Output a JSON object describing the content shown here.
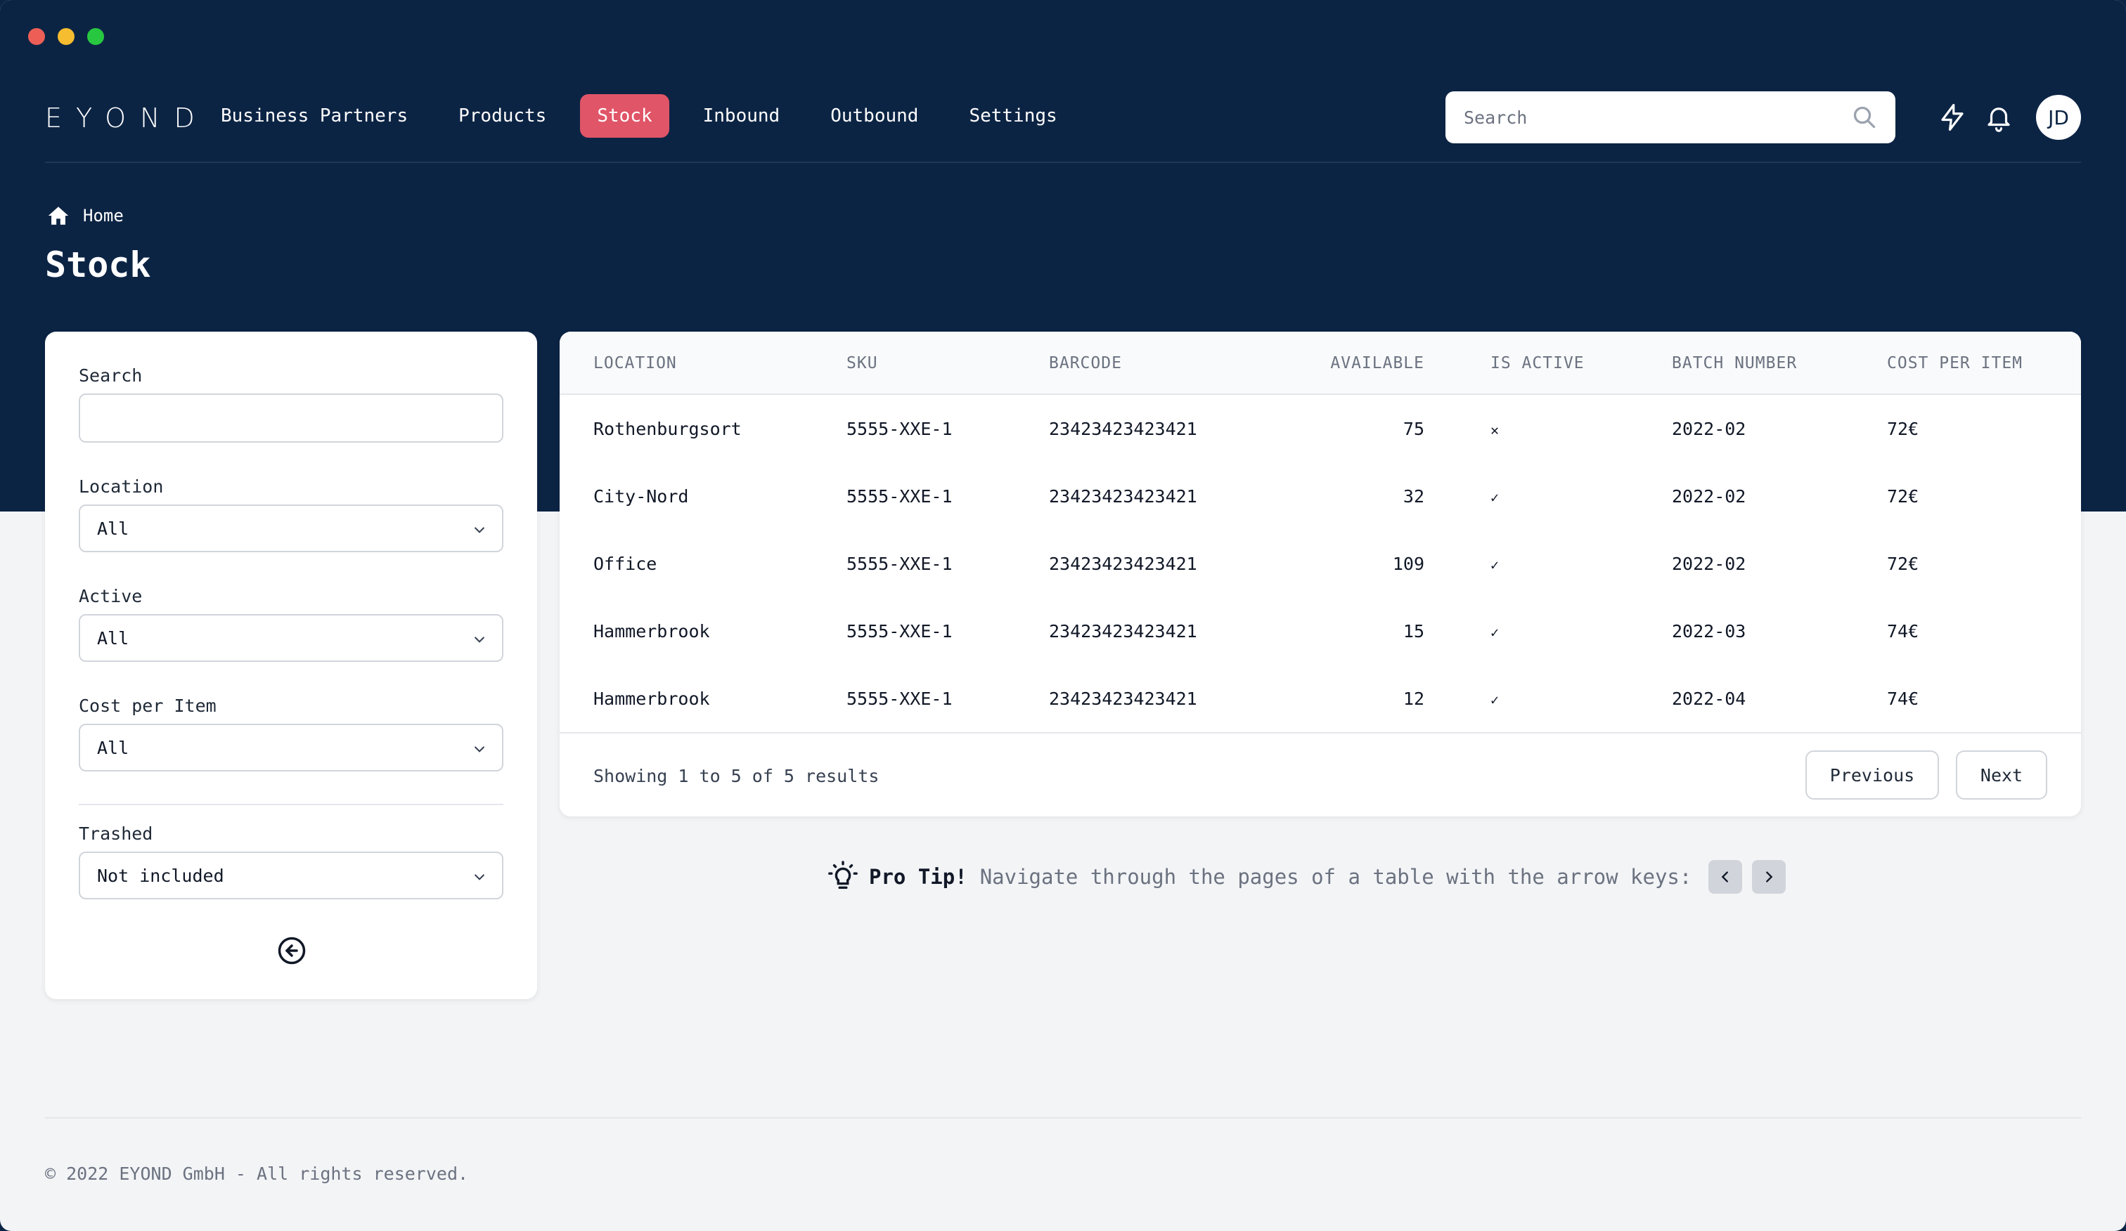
{
  "brand": {
    "logo_text": "EYOND"
  },
  "nav": {
    "items": [
      {
        "label": "Business Partners",
        "active": false
      },
      {
        "label": "Products",
        "active": false
      },
      {
        "label": "Stock",
        "active": true
      },
      {
        "label": "Inbound",
        "active": false
      },
      {
        "label": "Outbound",
        "active": false
      },
      {
        "label": "Settings",
        "active": false
      }
    ],
    "search_placeholder": "Search",
    "avatar_initials": "JD",
    "accent_color": "#e05567"
  },
  "breadcrumb": {
    "home_label": "Home"
  },
  "page": {
    "title": "Stock"
  },
  "filters": {
    "search_label": "Search",
    "search_value": "",
    "location_label": "Location",
    "location_value": "All",
    "active_label": "Active",
    "active_value": "All",
    "cost_label": "Cost per Item",
    "cost_value": "All",
    "trashed_label": "Trashed",
    "trashed_value": "Not included"
  },
  "table": {
    "columns": [
      "LOCATION",
      "SKU",
      "BARCODE",
      "AVAILABLE",
      "IS ACTIVE",
      "BATCH NUMBER",
      "COST PER ITEM"
    ],
    "rows": [
      {
        "location": "Rothenburgsort",
        "sku": "5555-XXE-1",
        "barcode": "23423423423421",
        "available": "75",
        "is_active": "✕",
        "batch": "2022-02",
        "cost": "72€"
      },
      {
        "location": "City-Nord",
        "sku": "5555-XXE-1",
        "barcode": "23423423423421",
        "available": "32",
        "is_active": "✓",
        "batch": "2022-02",
        "cost": "72€"
      },
      {
        "location": "Office",
        "sku": "5555-XXE-1",
        "barcode": "23423423423421",
        "available": "109",
        "is_active": "✓",
        "batch": "2022-02",
        "cost": "72€"
      },
      {
        "location": "Hammerbrook",
        "sku": "5555-XXE-1",
        "barcode": "23423423423421",
        "available": "15",
        "is_active": "✓",
        "batch": "2022-03",
        "cost": "74€"
      },
      {
        "location": "Hammerbrook",
        "sku": "5555-XXE-1",
        "barcode": "23423423423421",
        "available": "12",
        "is_active": "✓",
        "batch": "2022-04",
        "cost": "74€"
      }
    ],
    "showing_text": "Showing 1 to 5 of 5 results",
    "previous_label": "Previous",
    "next_label": "Next"
  },
  "tip": {
    "title": "Pro Tip!",
    "text": "Navigate through the pages of a table with the arrow keys:"
  },
  "footer": {
    "text": "© 2022 EYOND GmbH - All rights reserved."
  }
}
